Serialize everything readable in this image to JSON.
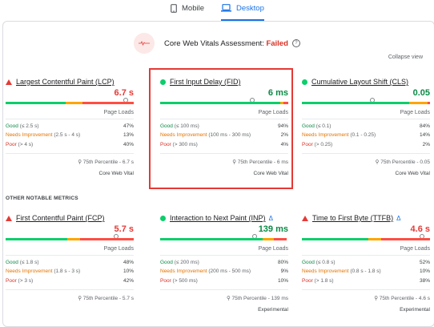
{
  "tabs": [
    {
      "label": "Mobile",
      "icon": "phone-icon",
      "active": false
    },
    {
      "label": "Desktop",
      "icon": "laptop-icon",
      "active": true
    }
  ],
  "assessment": {
    "prefix": "Core Web Vitals Assessment:",
    "status": "Failed",
    "icon": "help-icon"
  },
  "collapse_label": "Collapse view",
  "other_label": "OTHER NOTABLE METRICS",
  "metrics": [
    {
      "name": "Largest Contentful Paint (LCP)",
      "indicator": "poor",
      "value": "6.7 s",
      "value_status": "bad",
      "dist": [
        47,
        13,
        40
      ],
      "pin_fraction": 0.94,
      "page_loads": "Page Loads",
      "rows": [
        {
          "label": "Good",
          "range": "(≤ 2.5 s)",
          "pct": "47%"
        },
        {
          "label": "Needs Improvement",
          "range": "(2.5 s - 4 s)",
          "pct": "13%"
        },
        {
          "label": "Poor",
          "range": "(> 4 s)",
          "pct": "40%"
        }
      ],
      "p75": "75th Percentile - 6.7 s",
      "tag": "Core Web Vital",
      "delta": ""
    },
    {
      "name": "First Input Delay (FID)",
      "indicator": "good",
      "value": "6 ms",
      "value_status": "good",
      "dist": [
        94,
        2,
        4
      ],
      "pin_fraction": 0.72,
      "page_loads": "Page Loads",
      "rows": [
        {
          "label": "Good",
          "range": "(≤ 100 ms)",
          "pct": "94%"
        },
        {
          "label": "Needs Improvement",
          "range": "(100 ms - 300 ms)",
          "pct": "2%"
        },
        {
          "label": "Poor",
          "range": "(> 300 ms)",
          "pct": "4%"
        }
      ],
      "p75": "75th Percentile - 6 ms",
      "tag": "Core Web Vital",
      "delta": ""
    },
    {
      "name": "Cumulative Layout Shift (CLS)",
      "indicator": "good",
      "value": "0.05",
      "value_status": "good",
      "dist": [
        84,
        14,
        2
      ],
      "pin_fraction": 0.55,
      "page_loads": "Page Loads",
      "rows": [
        {
          "label": "Good",
          "range": "(≤ 0.1)",
          "pct": "84%"
        },
        {
          "label": "Needs Improvement",
          "range": "(0.1 - 0.25)",
          "pct": "14%"
        },
        {
          "label": "Poor",
          "range": "(> 0.25)",
          "pct": "2%"
        }
      ],
      "p75": "75th Percentile - 0.05",
      "tag": "Core Web Vital",
      "delta": ""
    },
    {
      "name": "First Contentful Paint (FCP)",
      "indicator": "poor",
      "value": "5.7 s",
      "value_status": "bad",
      "dist": [
        48,
        10,
        42
      ],
      "pin_fraction": 0.86,
      "page_loads": "Page Loads",
      "rows": [
        {
          "label": "Good",
          "range": "(≤ 1.8 s)",
          "pct": "48%"
        },
        {
          "label": "Needs Improvement",
          "range": "(1.8 s - 3 s)",
          "pct": "10%"
        },
        {
          "label": "Poor",
          "range": "(> 3 s)",
          "pct": "42%"
        }
      ],
      "p75": "75th Percentile - 5.7 s",
      "tag": "",
      "delta": ""
    },
    {
      "name": "Interaction to Next Paint (INP)",
      "indicator": "good",
      "value": "139 ms",
      "value_status": "good",
      "dist": [
        80,
        9,
        10
      ],
      "pin_fraction": 0.74,
      "page_loads": "Page Loads",
      "rows": [
        {
          "label": "Good",
          "range": "(≤ 200 ms)",
          "pct": "80%"
        },
        {
          "label": "Needs Improvement",
          "range": "(200 ms - 500 ms)",
          "pct": "9%"
        },
        {
          "label": "Poor",
          "range": "(> 500 ms)",
          "pct": "10%"
        }
      ],
      "p75": "75th Percentile - 139 ms",
      "tag": "Experimental",
      "delta": "Δ"
    },
    {
      "name": "Time to First Byte (TTFB)",
      "indicator": "poor",
      "value": "4.6 s",
      "value_status": "bad",
      "dist": [
        52,
        10,
        38
      ],
      "pin_fraction": 0.94,
      "page_loads": "Page Loads",
      "rows": [
        {
          "label": "Good",
          "range": "(≤ 0.8 s)",
          "pct": "52%"
        },
        {
          "label": "Needs Improvement",
          "range": "(0.8 s - 1.8 s)",
          "pct": "10%"
        },
        {
          "label": "Poor",
          "range": "(> 1.8 s)",
          "pct": "38%"
        }
      ],
      "p75": "75th Percentile - 4.6 s",
      "tag": "Experimental",
      "delta": "Δ"
    }
  ],
  "colors": {
    "good": "#0cce6b",
    "needs_improvement": "#ffa400",
    "poor": "#ff4e42",
    "accent": "#1a73e8",
    "failed": "#d93025"
  }
}
